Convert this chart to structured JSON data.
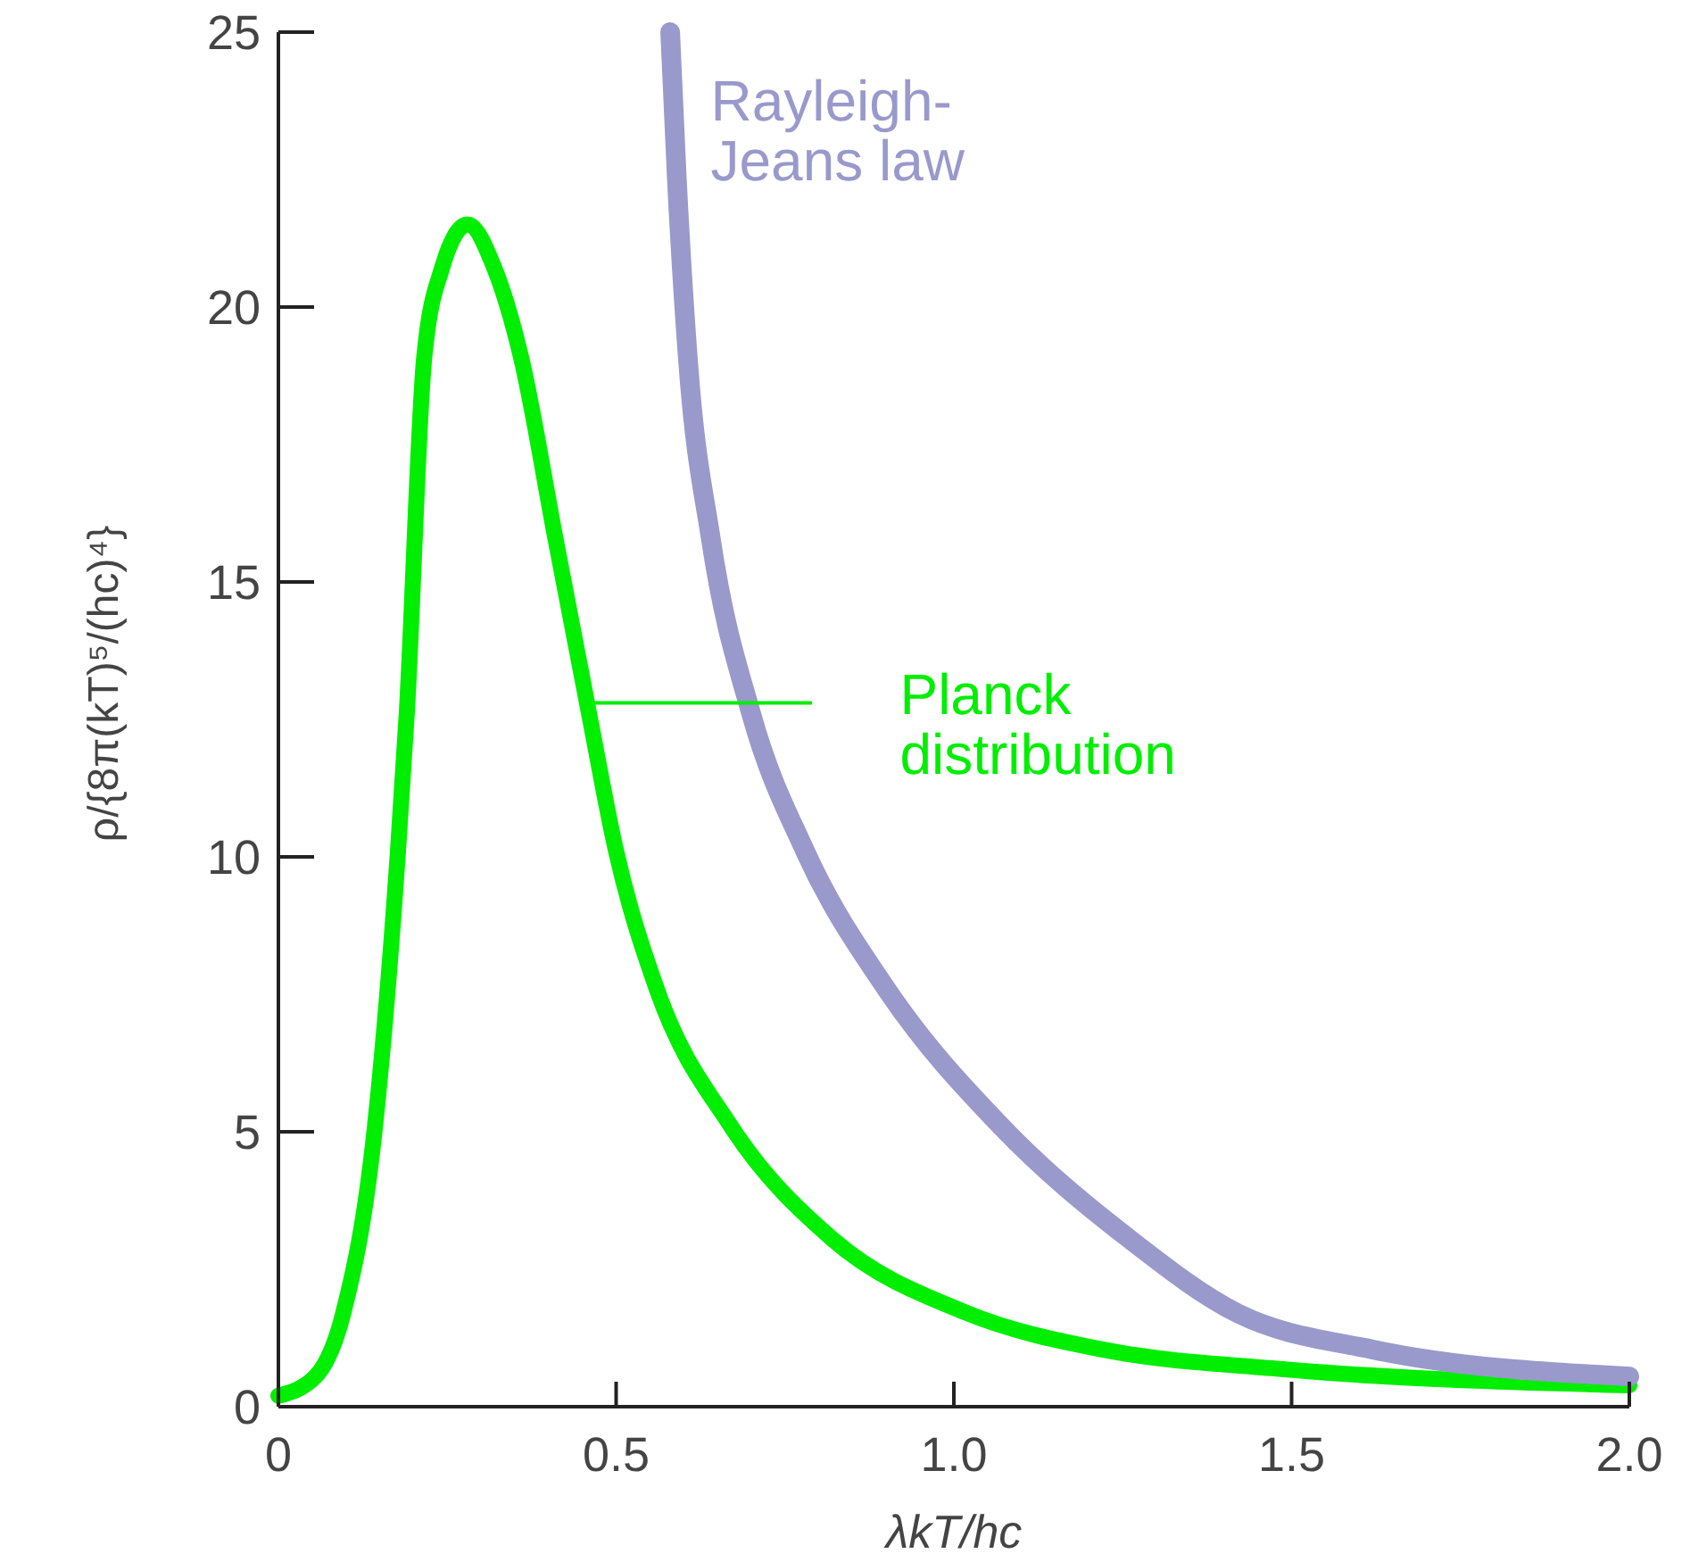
{
  "chart_data": {
    "type": "line",
    "xlabel": "λkT/hc",
    "ylabel": "ρ/{8π(kT)⁵/(hc)⁴}",
    "xlim": [
      0,
      2
    ],
    "ylim": [
      0,
      25
    ],
    "xticks": [
      0,
      {
        "value": 0.5,
        "label": "0.5"
      },
      {
        "value": 1,
        "label": "1.0"
      },
      {
        "value": 1.5,
        "label": "1.5"
      },
      {
        "value": 2,
        "label": "2.0"
      }
    ],
    "yticks": [
      0,
      5,
      10,
      15,
      20,
      25
    ],
    "grid": false,
    "legend": "center",
    "marker": "none",
    "line_style": "solid",
    "series": [
      {
        "name": "Planck distribution",
        "color": "#00ee00",
        "x": [
          0,
          0.055,
          0.096,
          0.143,
          0.177,
          0.19,
          0.216,
          0.242,
          0.28,
          0.32,
          0.359,
          0.41,
          0.46,
          0.5,
          0.56,
          0.67,
          0.82,
          1.02,
          1.22,
          1.49,
          2.0
        ],
        "values": [
          0.2,
          0.55,
          1.7,
          5.1,
          10.1,
          12.6,
          19.1,
          20.7,
          21.5,
          20.7,
          19.1,
          15.8,
          12.6,
          10.1,
          7.6,
          5.1,
          3.05,
          1.7,
          1.04,
          0.68,
          0.39
        ]
      },
      {
        "name": "Rayleigh-Jeans law",
        "color": "#9999cc",
        "x": [
          0.58,
          0.59,
          0.606,
          0.64,
          0.7,
          0.78,
          0.9,
          1.07,
          1.26,
          1.42,
          1.62,
          2.0
        ],
        "values": [
          25,
          22.3,
          19.1,
          15.8,
          12.6,
          10.1,
          7.6,
          5.1,
          3.05,
          1.7,
          1.04,
          0.55
        ]
      }
    ]
  }
}
